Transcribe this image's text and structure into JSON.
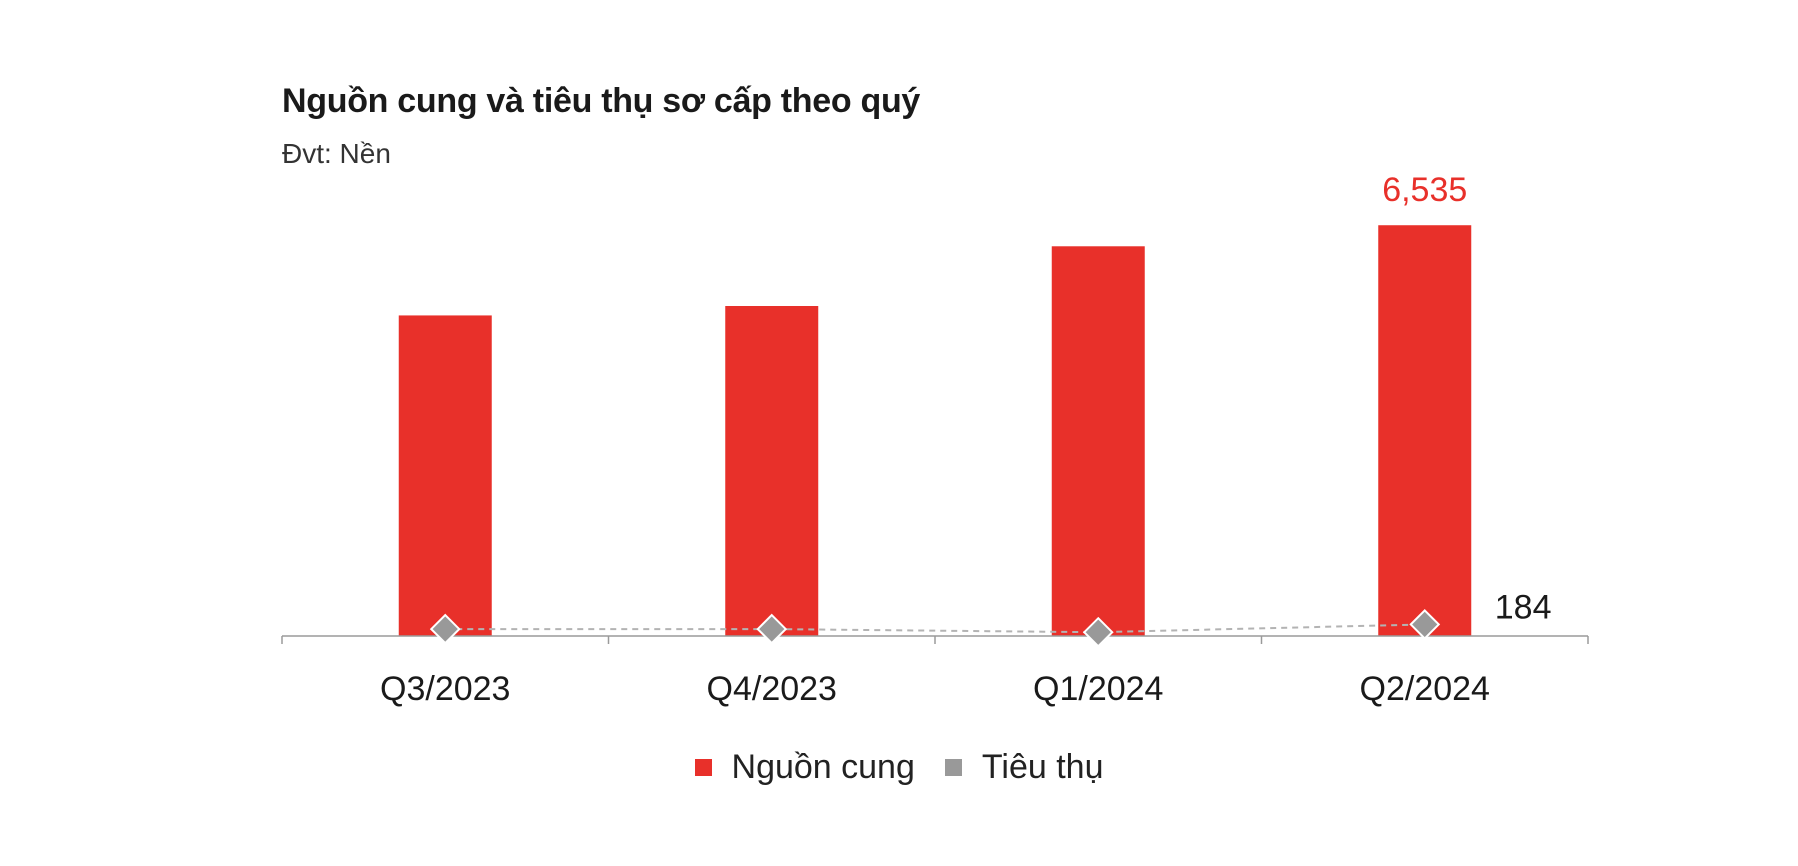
{
  "chart_data": {
    "type": "bar",
    "title": "Nguồn cung và tiêu thụ sơ cấp theo quý",
    "subtitle": "Đvt: Nền",
    "categories": [
      "Q3/2023",
      "Q4/2023",
      "Q1/2024",
      "Q2/2024"
    ],
    "series": [
      {
        "name": "Nguồn cung",
        "type": "bar",
        "color": "#E8302A",
        "values": [
          5100,
          5250,
          6200,
          6535
        ],
        "labels": [
          "",
          "",
          "",
          "6,535"
        ]
      },
      {
        "name": "Tiêu thụ",
        "type": "line",
        "marker": "diamond",
        "color": "#999999",
        "values": [
          110,
          110,
          60,
          184
        ],
        "labels": [
          "",
          "",
          "",
          "184"
        ]
      }
    ],
    "ylim": [
      0,
      7000
    ],
    "grid": false,
    "legend": "bottom-center"
  }
}
